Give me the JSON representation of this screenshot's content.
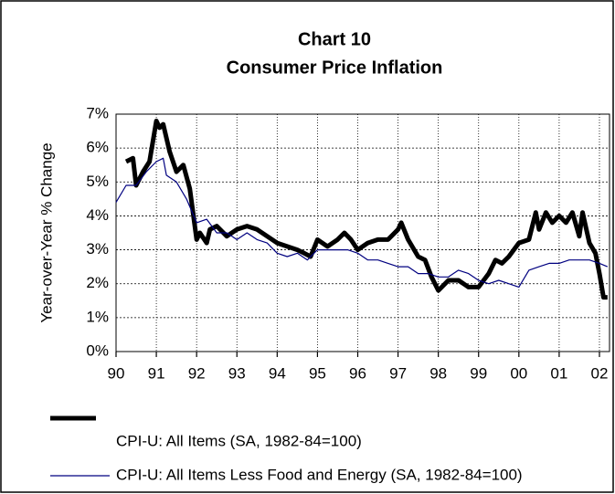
{
  "chart_data": {
    "type": "line",
    "title": [
      "Chart 10",
      "Consumer Price Inflation"
    ],
    "y_label": "Year-over-Year % Change",
    "xlim": [
      1990,
      2002.25
    ],
    "xticks": [
      {
        "value": 1990,
        "label": "90"
      },
      {
        "value": 1991,
        "label": "91"
      },
      {
        "value": 1992,
        "label": "92"
      },
      {
        "value": 1993,
        "label": "93"
      },
      {
        "value": 1994,
        "label": "94"
      },
      {
        "value": 1995,
        "label": "95"
      },
      {
        "value": 1996,
        "label": "96"
      },
      {
        "value": 1997,
        "label": "97"
      },
      {
        "value": 1998,
        "label": "98"
      },
      {
        "value": 1999,
        "label": "99"
      },
      {
        "value": 2000,
        "label": "00"
      },
      {
        "value": 2001,
        "label": "01"
      },
      {
        "value": 2002,
        "label": "02"
      }
    ],
    "ylim": [
      0,
      7
    ],
    "yticks": [
      {
        "value": 0,
        "label": "0%"
      },
      {
        "value": 1,
        "label": "1%"
      },
      {
        "value": 2,
        "label": "2%"
      },
      {
        "value": 3,
        "label": "3%"
      },
      {
        "value": 4,
        "label": "4%"
      },
      {
        "value": 5,
        "label": "5%"
      },
      {
        "value": 6,
        "label": "6%"
      },
      {
        "value": 7,
        "label": "7%"
      }
    ],
    "grid": true,
    "series": [
      {
        "name": "CPI-U: All Items (SA, 1982-84=100)",
        "color": "#000000",
        "width": 5,
        "x": [
          1990.25,
          1990.42,
          1990.5,
          1990.67,
          1990.83,
          1991.0,
          1991.08,
          1991.17,
          1991.33,
          1991.5,
          1991.67,
          1991.83,
          1992.0,
          1992.08,
          1992.25,
          1992.33,
          1992.5,
          1992.75,
          1993.0,
          1993.25,
          1993.5,
          1993.75,
          1994.0,
          1994.25,
          1994.5,
          1994.67,
          1994.83,
          1995.0,
          1995.25,
          1995.5,
          1995.67,
          1995.83,
          1996.0,
          1996.25,
          1996.5,
          1996.75,
          1997.0,
          1997.08,
          1997.25,
          1997.5,
          1997.67,
          1997.83,
          1998.0,
          1998.25,
          1998.5,
          1998.75,
          1999.0,
          1999.25,
          1999.42,
          1999.58,
          1999.75,
          2000.0,
          2000.25,
          2000.42,
          2000.5,
          2000.67,
          2000.83,
          2001.0,
          2001.17,
          2001.33,
          2001.5,
          2001.58,
          2001.75,
          2001.9,
          2002.0,
          2002.1,
          2002.2
        ],
        "values": [
          5.6,
          5.7,
          4.9,
          5.3,
          5.6,
          6.8,
          6.6,
          6.7,
          5.9,
          5.3,
          5.5,
          4.8,
          3.3,
          3.5,
          3.2,
          3.6,
          3.7,
          3.4,
          3.6,
          3.7,
          3.6,
          3.4,
          3.2,
          3.1,
          3.0,
          2.9,
          2.8,
          3.3,
          3.1,
          3.3,
          3.5,
          3.3,
          3.0,
          3.2,
          3.3,
          3.3,
          3.6,
          3.8,
          3.3,
          2.8,
          2.7,
          2.2,
          1.8,
          2.1,
          2.1,
          1.9,
          1.9,
          2.3,
          2.7,
          2.6,
          2.8,
          3.2,
          3.3,
          4.1,
          3.6,
          4.1,
          3.8,
          4.0,
          3.8,
          4.1,
          3.4,
          4.1,
          3.2,
          2.9,
          2.3,
          1.6,
          1.6
        ]
      },
      {
        "name": "CPI-U: All Items Less Food and Energy (SA, 1982-84=100)",
        "color": "#000080",
        "width": 1.2,
        "x": [
          1990.0,
          1990.25,
          1990.5,
          1990.75,
          1991.0,
          1991.17,
          1991.25,
          1991.5,
          1991.75,
          1992.0,
          1992.25,
          1992.5,
          1992.75,
          1993.0,
          1993.25,
          1993.5,
          1993.75,
          1994.0,
          1994.25,
          1994.5,
          1994.75,
          1995.0,
          1995.25,
          1995.5,
          1995.75,
          1996.0,
          1996.25,
          1996.5,
          1996.75,
          1997.0,
          1997.25,
          1997.5,
          1997.75,
          1998.0,
          1998.25,
          1998.5,
          1998.75,
          1999.0,
          1999.25,
          1999.5,
          1999.75,
          2000.0,
          2000.25,
          2000.5,
          2000.75,
          2001.0,
          2001.25,
          2001.5,
          2001.75,
          2002.0,
          2002.2
        ],
        "values": [
          4.4,
          4.9,
          4.9,
          5.3,
          5.6,
          5.7,
          5.2,
          5.0,
          4.5,
          3.8,
          3.9,
          3.5,
          3.5,
          3.3,
          3.5,
          3.3,
          3.2,
          2.9,
          2.8,
          2.9,
          2.7,
          3.0,
          3.0,
          3.0,
          3.0,
          2.9,
          2.7,
          2.7,
          2.6,
          2.5,
          2.5,
          2.3,
          2.3,
          2.2,
          2.2,
          2.4,
          2.3,
          2.1,
          2.0,
          2.1,
          2.0,
          1.9,
          2.4,
          2.5,
          2.6,
          2.6,
          2.7,
          2.7,
          2.7,
          2.6,
          2.5
        ]
      }
    ]
  }
}
